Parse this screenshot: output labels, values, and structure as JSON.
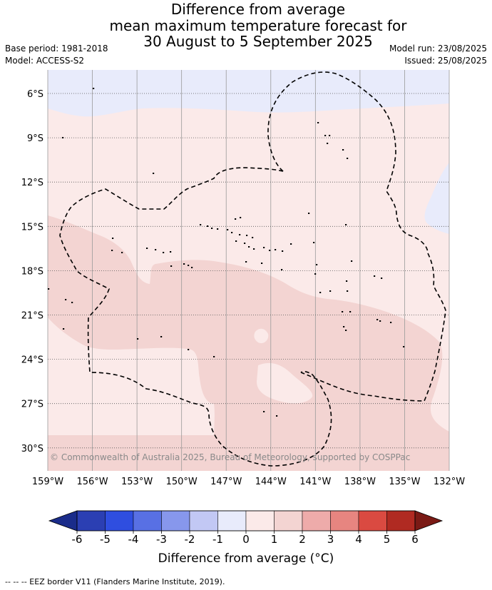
{
  "title": {
    "line1": "Difference from average",
    "line2": "mean maximum temperature forecast for",
    "line3": "30 August to 5 September 2025"
  },
  "info": {
    "base_period": "Base period: 1981-2018",
    "model": "Model: ACCESS-S2",
    "model_run": "Model run: 23/08/2025",
    "issued": "Issued: 25/08/2025"
  },
  "map": {
    "longitude_labels": [
      "159°W",
      "156°W",
      "153°W",
      "150°W",
      "147°W",
      "144°W",
      "141°W",
      "138°W",
      "135°W",
      "132°W"
    ],
    "latitude_labels": [
      "6°S",
      "9°S",
      "12°S",
      "15°S",
      "18°S",
      "21°S",
      "24°S",
      "27°S",
      "30°S"
    ],
    "colors": {
      "band_minus1_0": "#e8ebfb",
      "band_0_1": "#fbeae9",
      "band_1_2": "#f3d4d2",
      "gridline": "#9a9a9a",
      "eez_border": "#000000"
    },
    "credit": "© Commonwealth of Australia 2025, Bureau of Meteorology, supported by COSPPac"
  },
  "colorbar": {
    "tick_labels": [
      "-6",
      "-5",
      "-4",
      "-3",
      "-2",
      "-1",
      "0",
      "1",
      "2",
      "3",
      "4",
      "5",
      "6"
    ],
    "colors": [
      "#1a2c8a",
      "#2b3fb3",
      "#2f4ee0",
      "#5870e4",
      "#8797ec",
      "#c2c8f4",
      "#e8ebfb",
      "#fbeae9",
      "#f3d4d2",
      "#eeabaa",
      "#e78580",
      "#da4a41",
      "#b02a22",
      "#7a1a15"
    ],
    "title": "Difference from average (°C)"
  },
  "footer": {
    "eez_note": "-- -- -- EEZ border V11 (Flanders Marine Institute, 2019)."
  }
}
